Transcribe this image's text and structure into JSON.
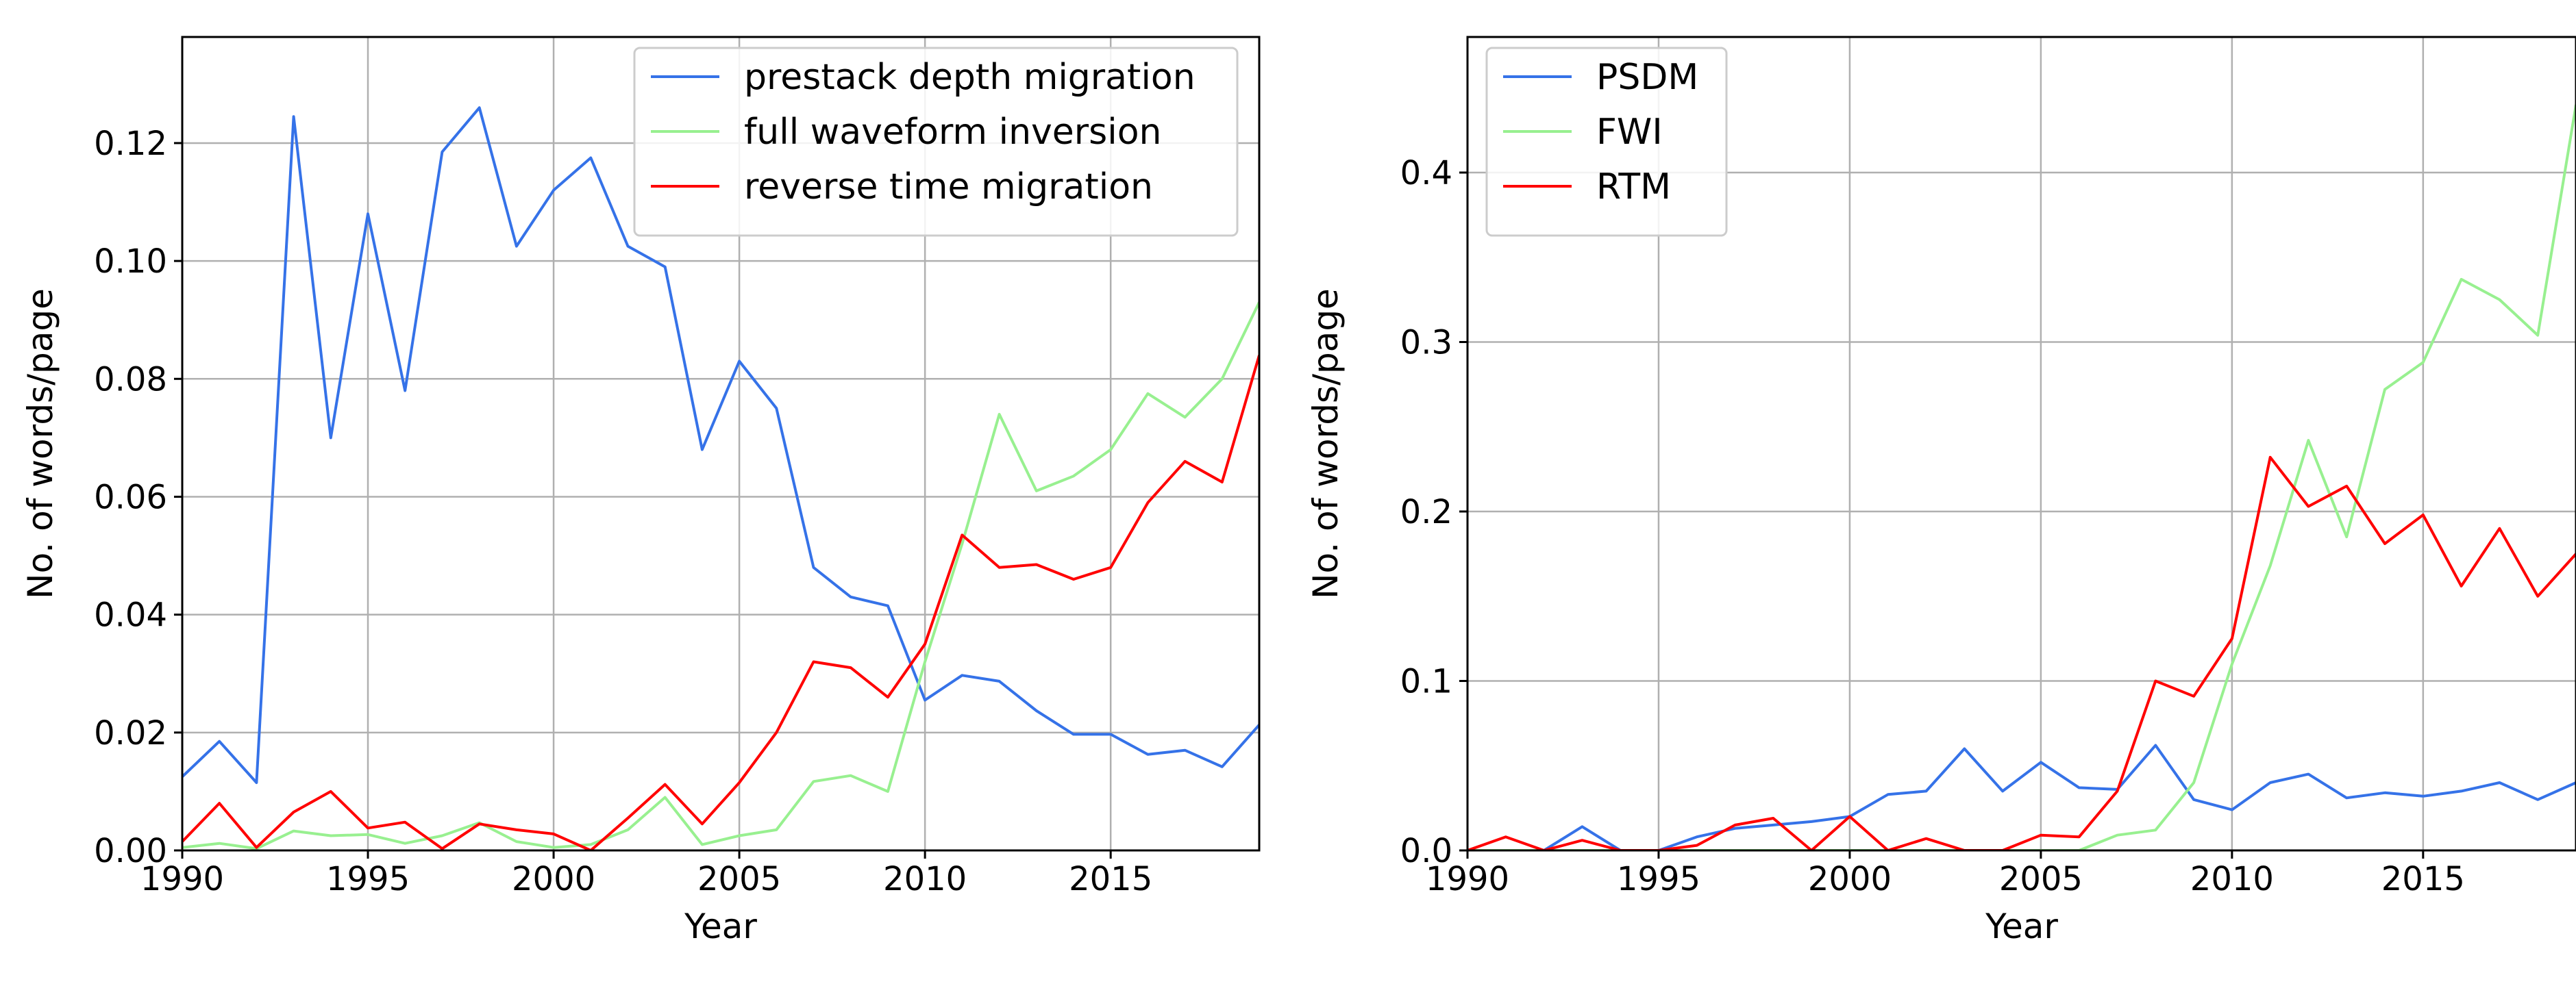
{
  "chart_data": [
    {
      "type": "line",
      "title": "",
      "xlabel": "Year",
      "ylabel": "No. of words/page",
      "xlim": [
        1990,
        2019
      ],
      "ylim": [
        0,
        0.138
      ],
      "xticks": [
        1990,
        1995,
        2000,
        2005,
        2010,
        2015
      ],
      "yticks": [
        0.0,
        0.02,
        0.04,
        0.06,
        0.08,
        0.1,
        0.12
      ],
      "ytick_labels": [
        "0.00",
        "0.02",
        "0.04",
        "0.06",
        "0.08",
        "0.10",
        "0.12"
      ],
      "grid": true,
      "legend_position": "top-right",
      "x": [
        1990,
        1991,
        1992,
        1993,
        1994,
        1995,
        1996,
        1997,
        1998,
        1999,
        2000,
        2001,
        2002,
        2003,
        2004,
        2005,
        2006,
        2007,
        2008,
        2009,
        2010,
        2011,
        2012,
        2013,
        2014,
        2015,
        2016,
        2017,
        2018,
        2019
      ],
      "series": [
        {
          "name": "prestack depth migration",
          "color": "#3572e8",
          "values": [
            0.0125,
            0.0185,
            0.0115,
            0.1245,
            0.07,
            0.108,
            0.078,
            0.1185,
            0.126,
            0.1025,
            0.112,
            0.1175,
            0.1025,
            0.099,
            0.068,
            0.083,
            0.075,
            0.048,
            0.043,
            0.0415,
            0.0255,
            0.0297,
            0.0287,
            0.0237,
            0.0197,
            0.0197,
            0.0163,
            0.017,
            0.0142,
            0.0213
          ]
        },
        {
          "name": "full waveform inversion",
          "color": "#98f090",
          "values": [
            0.0005,
            0.0012,
            0.0003,
            0.0033,
            0.0025,
            0.0027,
            0.0012,
            0.0025,
            0.0047,
            0.0015,
            0.0005,
            0.001,
            0.0035,
            0.009,
            0.001,
            0.0025,
            0.0035,
            0.0117,
            0.0127,
            0.01,
            0.032,
            0.052,
            0.074,
            0.061,
            0.0635,
            0.068,
            0.0775,
            0.0735,
            0.08,
            0.093
          ]
        },
        {
          "name": "reverse time migration",
          "color": "#ff0000",
          "values": [
            0.0015,
            0.008,
            0.0005,
            0.0065,
            0.01,
            0.0038,
            0.0048,
            0.0003,
            0.0045,
            0.0035,
            0.0028,
            0.0,
            0.0055,
            0.0112,
            0.0045,
            0.0115,
            0.02,
            0.032,
            0.031,
            0.026,
            0.035,
            0.0535,
            0.048,
            0.0485,
            0.046,
            0.048,
            0.059,
            0.066,
            0.0625,
            0.084
          ]
        }
      ]
    },
    {
      "type": "line",
      "title": "",
      "xlabel": "Year",
      "ylabel": "No. of words/page",
      "xlim": [
        1990,
        2019
      ],
      "ylim": [
        0,
        0.48
      ],
      "xticks": [
        1990,
        1995,
        2000,
        2005,
        2010,
        2015
      ],
      "yticks": [
        0.0,
        0.1,
        0.2,
        0.3,
        0.4
      ],
      "ytick_labels": [
        "0.0",
        "0.1",
        "0.2",
        "0.3",
        "0.4"
      ],
      "grid": true,
      "legend_position": "top-left",
      "x": [
        1990,
        1991,
        1992,
        1993,
        1994,
        1995,
        1996,
        1997,
        1998,
        1999,
        2000,
        2001,
        2002,
        2003,
        2004,
        2005,
        2006,
        2007,
        2008,
        2009,
        2010,
        2011,
        2012,
        2013,
        2014,
        2015,
        2016,
        2017,
        2018,
        2019
      ],
      "series": [
        {
          "name": "PSDM",
          "color": "#3572e8",
          "values": [
            0.0,
            0.0,
            0.0,
            0.014,
            0.0,
            0.0,
            0.008,
            0.013,
            0.015,
            0.017,
            0.02,
            0.033,
            0.035,
            0.06,
            0.035,
            0.052,
            0.037,
            0.036,
            0.062,
            0.03,
            0.024,
            0.04,
            0.045,
            0.031,
            0.034,
            0.032,
            0.035,
            0.04,
            0.03,
            0.04
          ]
        },
        {
          "name": "FWI",
          "color": "#98f090",
          "values": [
            0.0,
            0.0,
            0.0,
            0.0,
            0.0,
            0.0,
            0.0,
            0.0,
            0.0,
            0.0,
            0.0,
            0.0,
            0.0,
            0.0,
            0.0,
            0.0,
            0.0,
            0.009,
            0.012,
            0.04,
            0.11,
            0.168,
            0.242,
            0.185,
            0.272,
            0.288,
            0.337,
            0.325,
            0.304,
            0.44
          ]
        },
        {
          "name": "RTM",
          "color": "#ff0000",
          "values": [
            0.0,
            0.008,
            0.0,
            0.006,
            0.0,
            0.0,
            0.003,
            0.015,
            0.019,
            0.0,
            0.02,
            0.0,
            0.007,
            0.0,
            0.0,
            0.009,
            0.008,
            0.035,
            0.1,
            0.091,
            0.125,
            0.232,
            0.203,
            0.215,
            0.181,
            0.198,
            0.156,
            0.19,
            0.15,
            0.175
          ]
        }
      ]
    }
  ]
}
